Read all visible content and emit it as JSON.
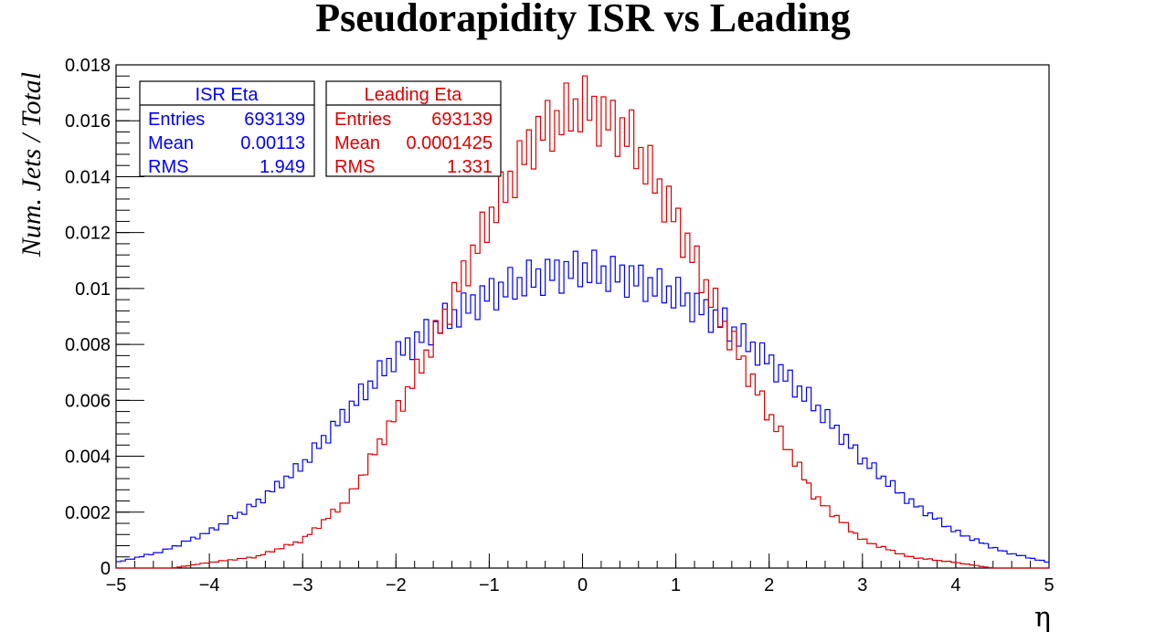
{
  "chart_data": {
    "type": "histogram",
    "title": "Pseudorapidity ISR vs Leading",
    "xlabel": "η",
    "ylabel": "Num. Jets / Total",
    "xlim": [
      -5,
      5
    ],
    "ylim": [
      0,
      0.018
    ],
    "x_ticks": [
      "−5",
      "−4",
      "−3",
      "−2",
      "−1",
      "0",
      "1",
      "2",
      "3",
      "4",
      "5"
    ],
    "y_ticks": [
      "0",
      "0.002",
      "0.004",
      "0.006",
      "0.008",
      "0.01",
      "0.012",
      "0.014",
      "0.016",
      "0.018"
    ],
    "bins": 200,
    "series": [
      {
        "name": "ISR Eta",
        "color": "#0000ff",
        "entries": "693139",
        "mean": "0.00113",
        "rms": "1.949",
        "anchors": [
          [
            -5.0,
            0.0002
          ],
          [
            -4.5,
            0.0006
          ],
          [
            -4.0,
            0.0013
          ],
          [
            -3.5,
            0.0023
          ],
          [
            -3.0,
            0.0037
          ],
          [
            -2.5,
            0.0057
          ],
          [
            -2.0,
            0.0076
          ],
          [
            -1.5,
            0.0088
          ],
          [
            -1.0,
            0.0098
          ],
          [
            -0.5,
            0.0104
          ],
          [
            0.0,
            0.0107
          ],
          [
            0.5,
            0.0104
          ],
          [
            1.0,
            0.0098
          ],
          [
            1.5,
            0.0088
          ],
          [
            2.0,
            0.0074
          ],
          [
            2.5,
            0.0058
          ],
          [
            3.0,
            0.0039
          ],
          [
            3.5,
            0.0024
          ],
          [
            4.0,
            0.0013
          ],
          [
            4.5,
            0.0006
          ],
          [
            5.0,
            0.0002
          ]
        ]
      },
      {
        "name": "Leading Eta",
        "color": "#dd0000",
        "entries": "693139",
        "mean": "0.0001425",
        "rms": "1.331",
        "anchors": [
          [
            -5.0,
            0.0
          ],
          [
            -4.4,
            0.0
          ],
          [
            -4.0,
            0.0002
          ],
          [
            -3.5,
            0.0004
          ],
          [
            -3.0,
            0.001
          ],
          [
            -2.5,
            0.0025
          ],
          [
            -2.0,
            0.0055
          ],
          [
            -1.5,
            0.0088
          ],
          [
            -1.0,
            0.0125
          ],
          [
            -0.5,
            0.0155
          ],
          [
            0.0,
            0.0166
          ],
          [
            0.5,
            0.0155
          ],
          [
            1.0,
            0.0125
          ],
          [
            1.5,
            0.0088
          ],
          [
            2.0,
            0.0055
          ],
          [
            2.5,
            0.0025
          ],
          [
            3.0,
            0.001
          ],
          [
            3.5,
            0.0004
          ],
          [
            4.0,
            0.0002
          ],
          [
            4.4,
            0.0
          ],
          [
            5.0,
            0.0
          ]
        ]
      }
    ]
  },
  "stats_labels": {
    "entries": "Entries",
    "mean": "Mean",
    "rms": "RMS"
  }
}
